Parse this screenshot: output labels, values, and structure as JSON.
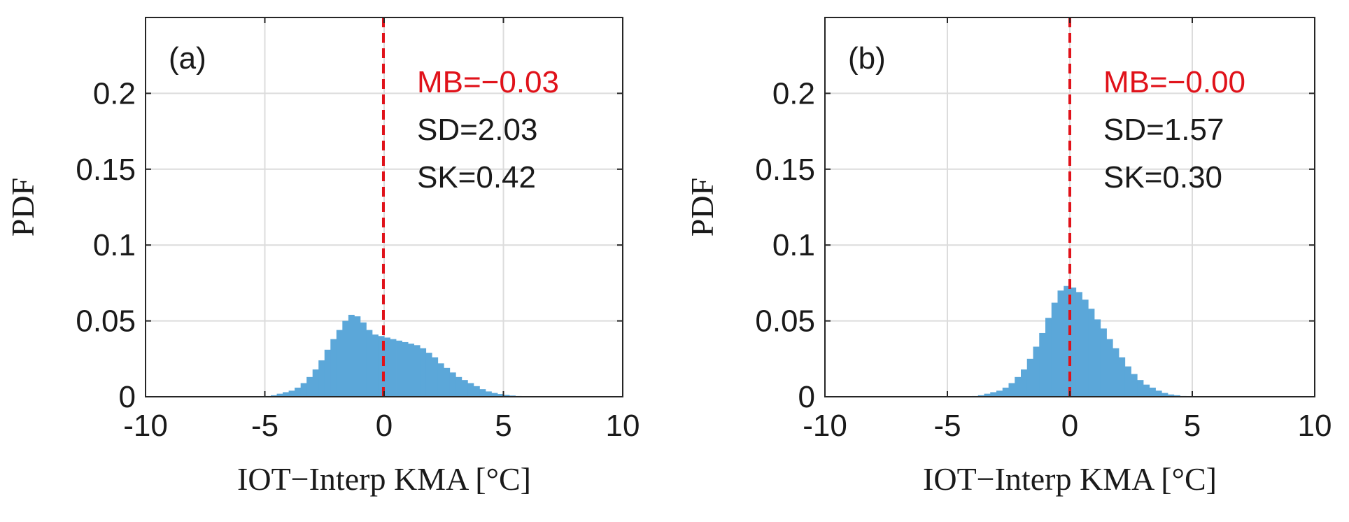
{
  "colors": {
    "bar": "#5BA7D9",
    "mean_line": "#E0121A",
    "mb_text": "#E0121A",
    "text": "#1a1a1a",
    "grid": "#dcdcdc",
    "axes": "#262626"
  },
  "chart_data": [
    {
      "type": "bar",
      "panel_label": "(a)",
      "xlabel": "IOT−Interp KMA [°C]",
      "ylabel": "PDF",
      "xlim": [
        -10,
        10
      ],
      "ylim": [
        0,
        0.25
      ],
      "xticks": [
        -10,
        -5,
        0,
        5,
        10
      ],
      "xtick_labels": [
        "-10",
        "-5",
        "0",
        "5",
        "10"
      ],
      "yticks": [
        0,
        0.05,
        0.1,
        0.15,
        0.2
      ],
      "ytick_labels": [
        "0",
        "0.05",
        "0.1",
        "0.15",
        "0.2"
      ],
      "grid": true,
      "mean_line_x": -0.03,
      "bin_width": 0.25,
      "bin_start": -5.0,
      "values": [
        0.0005,
        0.001,
        0.002,
        0.003,
        0.004,
        0.006,
        0.009,
        0.013,
        0.018,
        0.024,
        0.031,
        0.038,
        0.044,
        0.05,
        0.054,
        0.053,
        0.049,
        0.044,
        0.041,
        0.04,
        0.039,
        0.038,
        0.037,
        0.036,
        0.035,
        0.034,
        0.032,
        0.029,
        0.026,
        0.022,
        0.019,
        0.016,
        0.013,
        0.011,
        0.009,
        0.007,
        0.005,
        0.0035,
        0.0025,
        0.0018,
        0.0012,
        0.0008,
        0.0005,
        0.0003
      ],
      "stats": [
        {
          "name": "mb",
          "text": "MB=−0.03",
          "color": "red"
        },
        {
          "name": "sd",
          "text": "SD=2.03",
          "color": "black"
        },
        {
          "name": "sk",
          "text": "SK=0.42",
          "color": "black"
        }
      ]
    },
    {
      "type": "bar",
      "panel_label": "(b)",
      "xlabel": "IOT−Interp KMA [°C]",
      "ylabel": "PDF",
      "xlim": [
        -10,
        10
      ],
      "ylim": [
        0,
        0.25
      ],
      "xticks": [
        -10,
        -5,
        0,
        5,
        10
      ],
      "xtick_labels": [
        "-10",
        "-5",
        "0",
        "5",
        "10"
      ],
      "yticks": [
        0,
        0.05,
        0.1,
        0.15,
        0.2
      ],
      "ytick_labels": [
        "0",
        "0.05",
        "0.1",
        "0.15",
        "0.2"
      ],
      "grid": true,
      "mean_line_x": 0.0,
      "bin_width": 0.25,
      "bin_start": -4.0,
      "values": [
        0.0005,
        0.001,
        0.002,
        0.003,
        0.004,
        0.006,
        0.009,
        0.013,
        0.018,
        0.025,
        0.033,
        0.042,
        0.052,
        0.062,
        0.07,
        0.073,
        0.072,
        0.069,
        0.064,
        0.058,
        0.051,
        0.045,
        0.038,
        0.032,
        0.026,
        0.02,
        0.015,
        0.011,
        0.008,
        0.006,
        0.004,
        0.0025,
        0.0015,
        0.001,
        0.0005
      ],
      "stats": [
        {
          "name": "mb",
          "text": "MB=−0.00",
          "color": "red"
        },
        {
          "name": "sd",
          "text": "SD=1.57",
          "color": "black"
        },
        {
          "name": "sk",
          "text": "SK=0.30",
          "color": "black"
        }
      ]
    }
  ]
}
